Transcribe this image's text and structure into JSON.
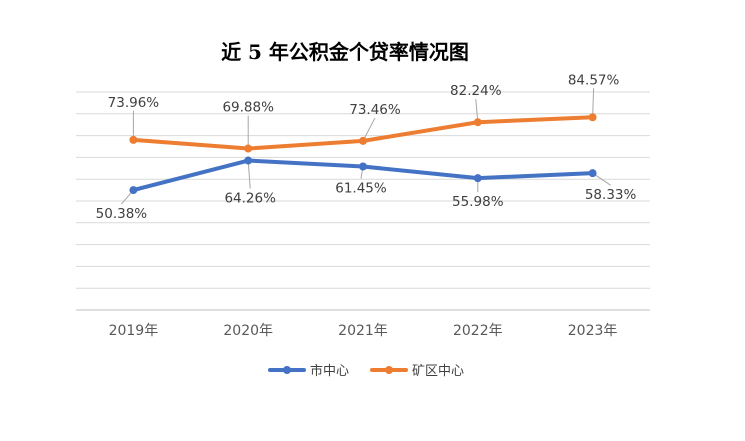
{
  "chart_data": {
    "type": "line",
    "title": "近 5 年公积金个贷率情况图",
    "categories": [
      "2019年",
      "2020年",
      "2021年",
      "2022年",
      "2023年"
    ],
    "xlabel": "",
    "ylabel": "",
    "grid": true,
    "legend_position": "bottom",
    "series": [
      {
        "name": "市中心",
        "color": "#4472C4",
        "values": [
          50.38,
          64.26,
          61.45,
          55.98,
          58.33
        ],
        "labels": [
          "50.38%",
          "64.26%",
          "61.45%",
          "55.98%",
          "58.33%"
        ]
      },
      {
        "name": "矿区中心",
        "color": "#ED7D31",
        "values": [
          73.96,
          69.88,
          73.46,
          82.24,
          84.57
        ],
        "labels": [
          "73.96%",
          "69.88%",
          "73.46%",
          "82.24%",
          "84.57%"
        ]
      }
    ]
  }
}
